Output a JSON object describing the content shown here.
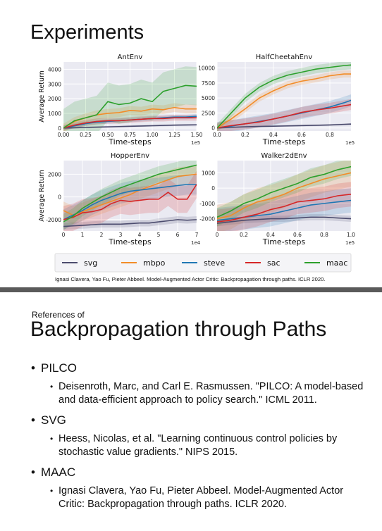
{
  "slide1": {
    "title": "Experiments",
    "citation": "Ignasi Clavera, Yao Fu, Pieter Abbeel. Model-Augmented Actor Critic: Backpropagation through paths. ICLR 2020."
  },
  "slide2": {
    "small_label": "References of",
    "title": "Backpropagation through Paths",
    "refs": [
      {
        "name": "PILCO",
        "text": "Deisenroth, Marc, and Carl E. Rasmussen. \"PILCO: A model-based and data-efficient approach to policy search.\" ICML 2011."
      },
      {
        "name": "SVG",
        "text": "Heess, Nicolas, et al. \"Learning continuous control policies by stochastic value gradients.\" NIPS 2015."
      },
      {
        "name": "MAAC",
        "text": "Ignasi Clavera, Yao Fu, Pieter Abbeel. Model-Augmented Actor Critic: Backpropagation through paths. ICLR 2020."
      }
    ]
  },
  "legend": [
    {
      "name": "svg",
      "color": "#4c4c6e"
    },
    {
      "name": "mbpo",
      "color": "#f28c28"
    },
    {
      "name": "steve",
      "color": "#1f77b4"
    },
    {
      "name": "sac",
      "color": "#d62728"
    },
    {
      "name": "maac",
      "color": "#2ca02c"
    }
  ],
  "chart_data": [
    {
      "type": "line",
      "title": "AntEnv",
      "xlabel": "Time-steps",
      "ylabel": "Average Return",
      "x_multiplier": "1e5",
      "xlim": [
        0,
        1.5
      ],
      "ylim": [
        -200,
        4500
      ],
      "xticks": [
        0,
        0.25,
        0.5,
        0.75,
        1.0,
        1.25,
        1.5
      ],
      "xtick_labels": [
        "0.00",
        "0.25",
        "0.50",
        "0.75",
        "1.00",
        "1.25",
        "1.50"
      ],
      "yticks": [
        0,
        1000,
        2000,
        3000,
        4000
      ],
      "ytick_labels": [
        "0",
        "1000",
        "2000",
        "3000",
        "4000"
      ],
      "x": [
        0,
        0.125,
        0.25,
        0.375,
        0.5,
        0.625,
        0.75,
        0.875,
        1.0,
        1.125,
        1.25,
        1.375,
        1.5
      ],
      "series": [
        {
          "name": "svg",
          "values": [
            0,
            20,
            40,
            60,
            80,
            100,
            120,
            140,
            160,
            180,
            200,
            210,
            220
          ],
          "band": 60
        },
        {
          "name": "mbpo",
          "values": [
            0,
            450,
            700,
            900,
            1000,
            1050,
            1200,
            1150,
            1300,
            1250,
            1400,
            1300,
            1300
          ],
          "band": 300
        },
        {
          "name": "steve",
          "values": [
            0,
            150,
            300,
            400,
            450,
            500,
            550,
            600,
            650,
            700,
            750,
            750,
            800
          ],
          "band": 150
        },
        {
          "name": "sac",
          "values": [
            0,
            200,
            350,
            450,
            500,
            500,
            550,
            600,
            650,
            650,
            700,
            700,
            700
          ],
          "band": 200
        },
        {
          "name": "maac",
          "values": [
            0,
            500,
            700,
            900,
            1800,
            1600,
            1700,
            2000,
            1800,
            2500,
            2700,
            2900,
            2850
          ],
          "band": 1300
        }
      ]
    },
    {
      "type": "line",
      "title": "HalfCheetahEnv",
      "xlabel": "Time-steps",
      "ylabel": "",
      "x_multiplier": "1e5",
      "xlim": [
        0,
        0.95
      ],
      "ylim": [
        -500,
        11000
      ],
      "xticks": [
        0,
        0.2,
        0.4,
        0.6,
        0.8
      ],
      "xtick_labels": [
        "0.0",
        "0.2",
        "0.4",
        "0.6",
        "0.8"
      ],
      "yticks": [
        0,
        2500,
        5000,
        7500,
        10000
      ],
      "ytick_labels": [
        "0",
        "2500",
        "5000",
        "7500",
        "10000"
      ],
      "x": [
        0,
        0.1,
        0.2,
        0.3,
        0.4,
        0.5,
        0.6,
        0.7,
        0.8,
        0.9,
        0.95
      ],
      "series": [
        {
          "name": "svg",
          "values": [
            0,
            100,
            200,
            250,
            300,
            350,
            400,
            450,
            500,
            600,
            650
          ],
          "band": 150
        },
        {
          "name": "mbpo",
          "values": [
            0,
            1500,
            3200,
            5000,
            6200,
            7200,
            7800,
            8200,
            8700,
            9000,
            9000
          ],
          "band": 600
        },
        {
          "name": "steve",
          "values": [
            0,
            300,
            700,
            1100,
            1500,
            2000,
            2500,
            3000,
            3500,
            4200,
            4600
          ],
          "band": 1000
        },
        {
          "name": "sac",
          "values": [
            0,
            400,
            700,
            1000,
            1500,
            2000,
            2600,
            3000,
            3300,
            3700,
            3900
          ],
          "band": 900
        },
        {
          "name": "maac",
          "values": [
            0,
            2500,
            5000,
            6800,
            8000,
            8800,
            9300,
            9800,
            10100,
            10400,
            10500
          ],
          "band": 700
        }
      ]
    },
    {
      "type": "line",
      "title": "HopperEnv",
      "xlabel": "Time-steps",
      "ylabel": "Average Return",
      "x_multiplier": "1e4",
      "xlim": [
        0,
        7
      ],
      "ylim": [
        -3000,
        3200
      ],
      "xticks": [
        0,
        1,
        2,
        3,
        4,
        5,
        6,
        7
      ],
      "xtick_labels": [
        "0",
        "1",
        "2",
        "3",
        "4",
        "5",
        "6",
        "7"
      ],
      "yticks": [
        -2000,
        0,
        2000
      ],
      "ytick_labels": [
        "-2000",
        "0",
        "2000"
      ],
      "x": [
        0,
        0.5,
        1,
        1.5,
        2,
        2.5,
        3,
        3.5,
        4,
        4.5,
        5,
        5.5,
        6,
        6.5,
        7
      ],
      "series": [
        {
          "name": "svg",
          "values": [
            -2600,
            -2550,
            -2500,
            -2450,
            -2400,
            -2400,
            -2400,
            -2350,
            -2300,
            -2300,
            -2200,
            -2100,
            -2000,
            -2050,
            -2000
          ],
          "band": 300
        },
        {
          "name": "mbpo",
          "values": [
            -1200,
            -1600,
            -1300,
            -1000,
            -700,
            -400,
            -100,
            200,
            600,
            900,
            1200,
            1500,
            1800,
            1900,
            2000
          ],
          "band": 800
        },
        {
          "name": "steve",
          "values": [
            -2000,
            -1600,
            -1200,
            -700,
            -300,
            0,
            300,
            500,
            600,
            700,
            800,
            900,
            1000,
            1100,
            1100
          ],
          "band": 900
        },
        {
          "name": "sac",
          "values": [
            -2000,
            -1800,
            -1400,
            -1300,
            -1100,
            -600,
            -300,
            -400,
            -300,
            -200,
            -200,
            400,
            -200,
            -200,
            1100
          ],
          "band": 1200
        },
        {
          "name": "maac",
          "values": [
            -2200,
            -1700,
            -1000,
            -500,
            0,
            400,
            800,
            1100,
            1400,
            1700,
            2000,
            2200,
            2400,
            2600,
            2800
          ],
          "band": 700
        }
      ]
    },
    {
      "type": "line",
      "title": "Walker2dEnv",
      "xlabel": "Time-steps",
      "ylabel": "",
      "x_multiplier": "1e5",
      "xlim": [
        0,
        1.0
      ],
      "ylim": [
        -2800,
        1800
      ],
      "xticks": [
        0,
        0.2,
        0.4,
        0.6,
        0.8,
        1.0
      ],
      "xtick_labels": [
        "0",
        "0.2",
        "0.4",
        "0.6",
        "0.8",
        "1.0"
      ],
      "yticks": [
        -2000,
        -1000,
        0,
        1000
      ],
      "ytick_labels": [
        "-2000",
        "-1000",
        "0",
        "1000"
      ],
      "x": [
        0,
        0.1,
        0.2,
        0.3,
        0.4,
        0.5,
        0.6,
        0.7,
        0.8,
        0.9,
        1.0
      ],
      "series": [
        {
          "name": "svg",
          "values": [
            -2300,
            -2200,
            -2100,
            -2050,
            -2000,
            -2000,
            -1950,
            -1900,
            -1900,
            -1950,
            -2000
          ],
          "band": 200
        },
        {
          "name": "mbpo",
          "values": [
            -2000,
            -1800,
            -1300,
            -900,
            -700,
            -400,
            0,
            300,
            600,
            800,
            1000
          ],
          "band": 900
        },
        {
          "name": "steve",
          "values": [
            -2100,
            -2000,
            -1900,
            -1800,
            -1700,
            -1500,
            -1300,
            -1100,
            -1000,
            -900,
            -800
          ],
          "band": 800
        },
        {
          "name": "sac",
          "values": [
            -2200,
            -2100,
            -1900,
            -1700,
            -1400,
            -1200,
            -900,
            -800,
            -700,
            -500,
            -400
          ],
          "band": 800
        },
        {
          "name": "maac",
          "values": [
            -1900,
            -1500,
            -1000,
            -700,
            -300,
            0,
            300,
            700,
            900,
            1200,
            1400
          ],
          "band": 600
        }
      ]
    }
  ]
}
